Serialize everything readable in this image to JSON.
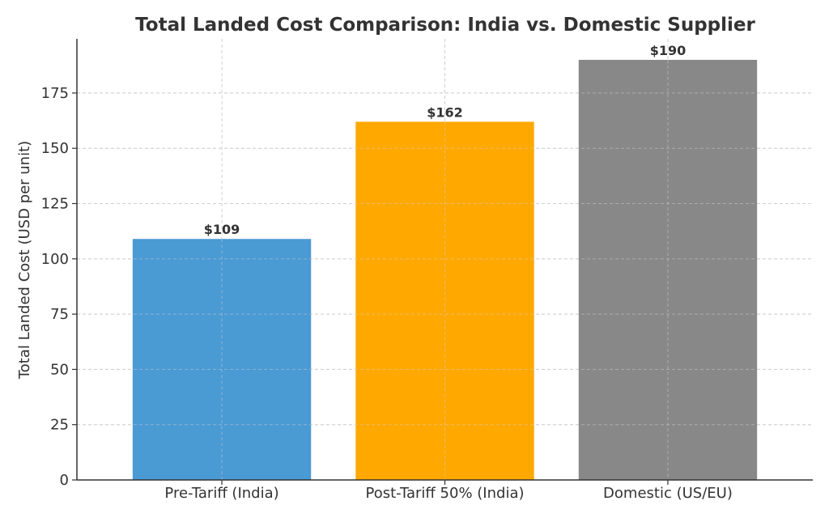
{
  "chart_data": {
    "type": "bar",
    "title": "Total Landed Cost Comparison: India vs. Domestic Supplier",
    "xlabel": "",
    "ylabel": "Total Landed Cost (USD per unit)",
    "categories": [
      "Pre-Tariff (India)",
      "Post-Tariff 50% (India)",
      "Domestic (US/EU)"
    ],
    "values": [
      109,
      162,
      190
    ],
    "data_labels": [
      "$109",
      "$162",
      "$190"
    ],
    "colors": [
      "#4a9ad4",
      "#ffa800",
      "#888888"
    ],
    "ylim": [
      0,
      199.5
    ],
    "yticks": [
      0,
      25,
      50,
      75,
      100,
      125,
      150,
      175
    ],
    "ytick_labels": [
      "0",
      "25",
      "50",
      "75",
      "100",
      "125",
      "150",
      "175"
    ],
    "grid": true,
    "legend": "none"
  }
}
